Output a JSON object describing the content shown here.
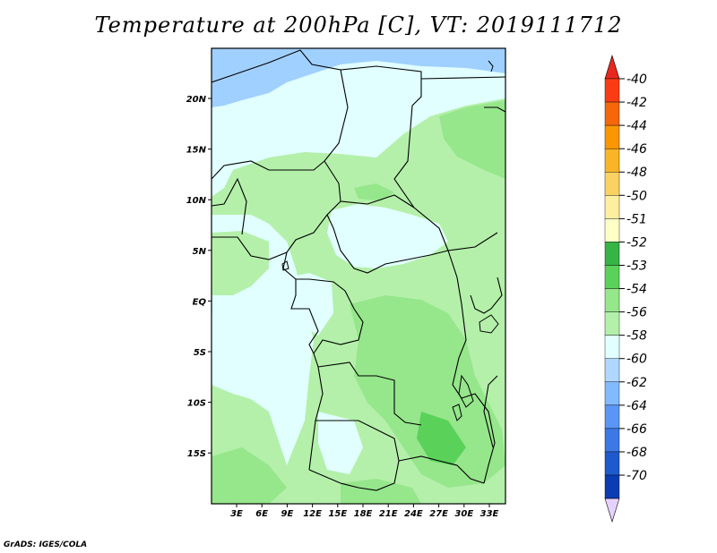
{
  "title": "Temperature at 200hPa [C], VT: 2019111712",
  "credit": "GrADS: IGES/COLA",
  "map": {
    "lat_labels": [
      "20N",
      "15N",
      "10N",
      "5N",
      "EQ",
      "5S",
      "10S",
      "15S"
    ],
    "lon_labels": [
      "3E",
      "6E",
      "9E",
      "12E",
      "15E",
      "18E",
      "21E",
      "24E",
      "27E",
      "30E",
      "33E"
    ]
  },
  "colorbar": {
    "labels": [
      "-40",
      "-42",
      "-44",
      "-46",
      "-48",
      "-50",
      "-51",
      "-52",
      "-53",
      "-54",
      "-56",
      "-58",
      "-60",
      "-62",
      "-64",
      "-66",
      "-68",
      "-70"
    ],
    "colors": {
      "top_arrow": "#e8281f",
      "bands": [
        "#fa3c14",
        "#f5670a",
        "#fa9600",
        "#fab428",
        "#fad264",
        "#fcf0a0",
        "#ffffc8",
        "#36b446",
        "#5ad25a",
        "#96e68c",
        "#b4f0aa",
        "#e1ffff",
        "#afd7ff",
        "#82b9ff",
        "#5a96f5",
        "#3c78e6",
        "#1e5acd",
        "#0a3cb4"
      ],
      "bottom_arrow": "#e6d2ff"
    }
  },
  "fills": {
    "cold_blue": "#a0d0ff",
    "pale": "#e1ffff",
    "light_green": "#b4f0aa",
    "mid_green": "#96e68c",
    "dark_green": "#5ad25a"
  }
}
